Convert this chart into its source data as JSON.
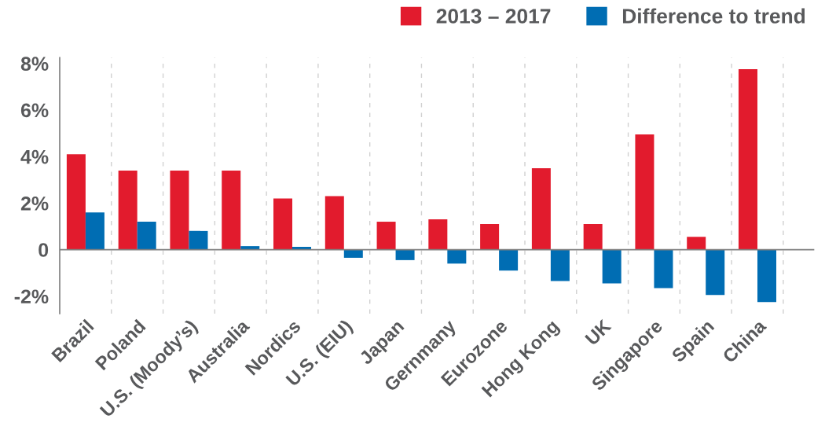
{
  "chart_data": {
    "type": "bar",
    "categories": [
      "Brazil",
      "Poland",
      "U.S. (Moody’s)",
      "Australia",
      "Nordics",
      "U.S. (EIU)",
      "Japan",
      "Gernmany",
      "Eurozone",
      "Hong Kong",
      "UK",
      "Singapore",
      "Spain",
      "China"
    ],
    "series": [
      {
        "name": "2013 – 2017",
        "color": "#e21b2d",
        "values": [
          4.1,
          3.4,
          3.4,
          3.4,
          2.2,
          2.3,
          1.2,
          1.3,
          1.1,
          3.5,
          1.1,
          4.95,
          0.55,
          7.75
        ]
      },
      {
        "name": "Difference to trend",
        "color": "#006db3",
        "values": [
          1.6,
          1.2,
          0.8,
          0.15,
          0.12,
          -0.35,
          -0.45,
          -0.6,
          -0.9,
          -1.35,
          -1.45,
          -1.65,
          -1.95,
          -2.25
        ]
      }
    ],
    "ylim": [
      -2.75,
      8.25
    ],
    "yticks": [
      {
        "value": 8,
        "label": "8%"
      },
      {
        "value": 6,
        "label": "6%"
      },
      {
        "value": 4,
        "label": "4%"
      },
      {
        "value": 2,
        "label": "2%"
      },
      0,
      {
        "value": -2,
        "label": "-2%"
      }
    ],
    "grid": "x",
    "legend": "top right"
  }
}
